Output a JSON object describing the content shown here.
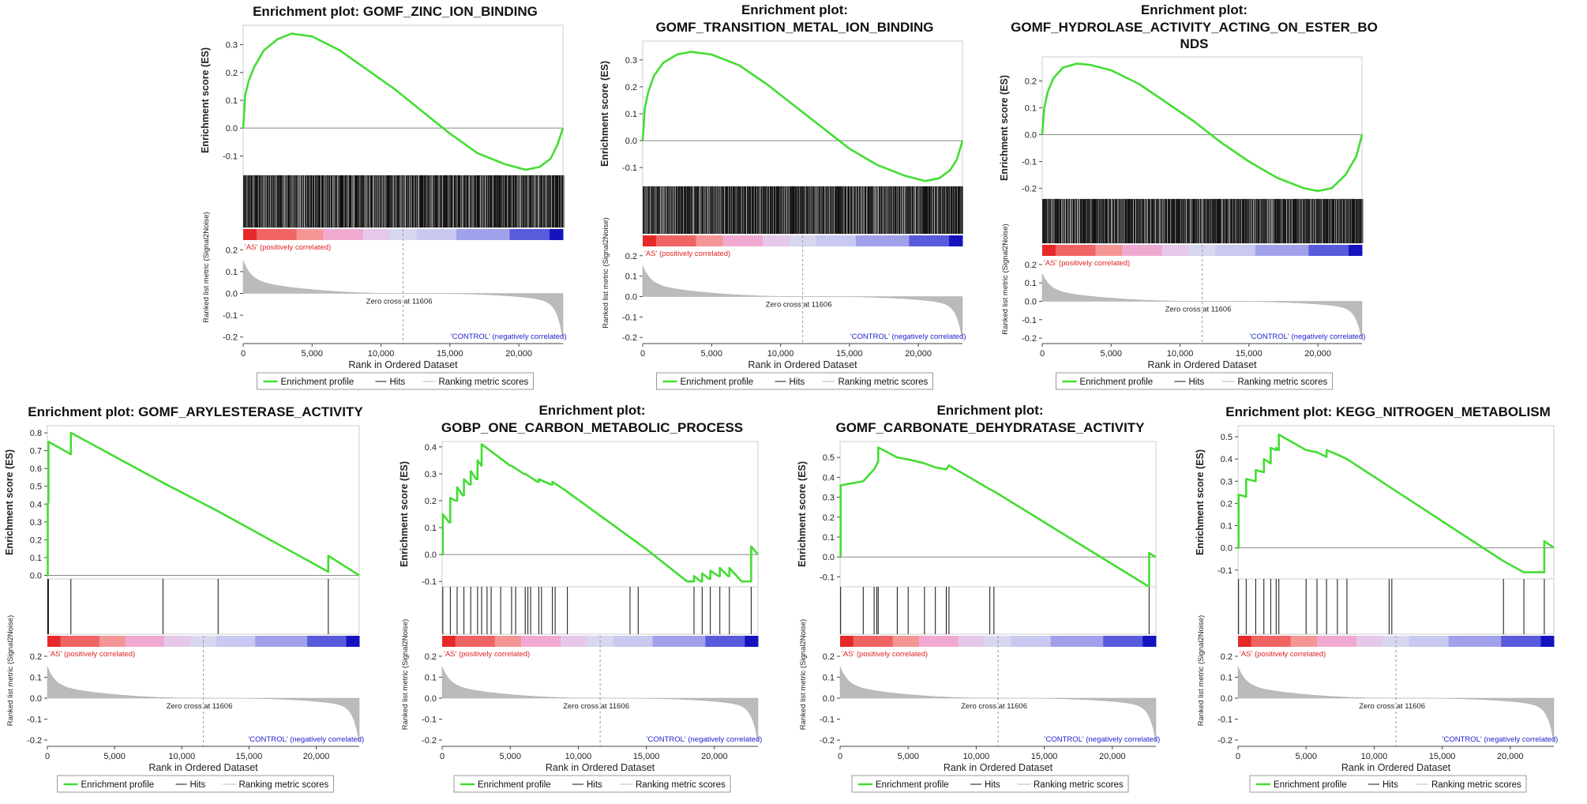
{
  "common": {
    "ylabel_es": "Enrichment score (ES)",
    "ylabel_metric": "Ranked list metric (Signal2Noise)",
    "xlabel": "Rank in Ordered Dataset",
    "x_tick_labels": [
      "0",
      "5,000",
      "10,000",
      "15,000",
      "20,000"
    ],
    "metric_tick_labels": [
      "0.2",
      "0.1",
      "0.0",
      "-0.1",
      "-0.2"
    ],
    "pos_label": "'AS' (positively correlated)",
    "neg_label": "'CONTROL' (negatively correlated)",
    "zero_cross": "Zero cross at 11606",
    "legend": {
      "profile": "Enrichment profile",
      "hits": "Hits",
      "ranking": "Ranking metric scores"
    },
    "colors": {
      "profile": "#44dd33",
      "hits": "#111111",
      "pos": "#dd2222",
      "neg": "#2222cc",
      "metric": "#bbbbbb"
    }
  },
  "chart_data": [
    {
      "type": "line",
      "title_lines": [
        "Enrichment plot: GOMF_ZINC_ION_BINDING"
      ],
      "ylim": [
        -0.17,
        0.37
      ],
      "y_ticks": [
        0.3,
        0.2,
        0.1,
        0.0,
        -0.1
      ],
      "y_tick_labels": [
        "0.3",
        "0.2",
        "0.1",
        "0.0",
        "-0.1"
      ],
      "x": [
        0,
        150,
        400,
        800,
        1500,
        2500,
        3500,
        5000,
        7000,
        9000,
        11000,
        13000,
        15000,
        17000,
        19000,
        20500,
        21500,
        22300,
        22800,
        23200
      ],
      "y": [
        0,
        0.12,
        0.17,
        0.22,
        0.28,
        0.32,
        0.34,
        0.33,
        0.28,
        0.21,
        0.14,
        0.06,
        -0.02,
        -0.09,
        -0.13,
        -0.15,
        -0.14,
        -0.11,
        -0.06,
        0.0
      ],
      "hits": "dense",
      "zero_cross": 11606,
      "n": 23200
    },
    {
      "type": "line",
      "title_lines": [
        "Enrichment plot:",
        "GOMF_TRANSITION_METAL_ION_BINDING"
      ],
      "ylim": [
        -0.17,
        0.37
      ],
      "y_ticks": [
        0.3,
        0.2,
        0.1,
        0.0,
        -0.1
      ],
      "y_tick_labels": [
        "0.3",
        "0.2",
        "0.1",
        "0.0",
        "-0.1"
      ],
      "x": [
        0,
        150,
        400,
        800,
        1500,
        2500,
        3500,
        5000,
        7000,
        9000,
        11000,
        13000,
        15000,
        17000,
        19000,
        20500,
        21500,
        22300,
        22800,
        23200
      ],
      "y": [
        0,
        0.12,
        0.18,
        0.24,
        0.29,
        0.32,
        0.33,
        0.32,
        0.28,
        0.21,
        0.13,
        0.05,
        -0.03,
        -0.09,
        -0.13,
        -0.15,
        -0.14,
        -0.11,
        -0.07,
        0.0
      ],
      "hits": "dense",
      "zero_cross": 11606,
      "n": 23200
    },
    {
      "type": "line",
      "title_lines": [
        "Enrichment plot:",
        "GOMF_HYDROLASE_ACTIVITY_ACTING_ON_ESTER_BO",
        "NDS"
      ],
      "ylim": [
        -0.24,
        0.29
      ],
      "y_ticks": [
        0.2,
        0.1,
        0.0,
        -0.1,
        -0.2
      ],
      "y_tick_labels": [
        "0.2",
        "0.1",
        "0.0",
        "-0.1",
        "-0.2"
      ],
      "x": [
        0,
        150,
        400,
        800,
        1500,
        2500,
        3500,
        5000,
        7000,
        9000,
        11000,
        13000,
        15000,
        17000,
        19000,
        20000,
        21000,
        22000,
        22800,
        23200
      ],
      "y": [
        0,
        0.1,
        0.16,
        0.21,
        0.25,
        0.265,
        0.26,
        0.24,
        0.19,
        0.12,
        0.05,
        -0.03,
        -0.1,
        -0.16,
        -0.2,
        -0.21,
        -0.2,
        -0.15,
        -0.08,
        0.0
      ],
      "hits": "dense",
      "zero_cross": 11606,
      "n": 23200
    },
    {
      "type": "line",
      "title_lines": [
        "Enrichment plot: GOMF_ARYLESTERASE_ACTIVITY"
      ],
      "ylim": [
        -0.02,
        0.84
      ],
      "y_ticks": [
        0.8,
        0.7,
        0.6,
        0.5,
        0.4,
        0.3,
        0.2,
        0.1,
        0.0
      ],
      "y_tick_labels": [
        "0.8",
        "0.7",
        "0.6",
        "0.5",
        "0.4",
        "0.3",
        "0.2",
        "0.1",
        "0.0"
      ],
      "x": [
        0,
        30,
        30,
        80,
        80,
        1750,
        1750,
        8600,
        8600,
        12700,
        12700,
        20900,
        20900,
        23200
      ],
      "y": [
        0,
        0.0,
        0.4,
        0.41,
        0.75,
        0.68,
        0.8,
        0.52,
        0.52,
        0.36,
        0.36,
        0.02,
        0.11,
        0.0
      ],
      "hit_positions": [
        30,
        80,
        1750,
        8600,
        12700,
        20900
      ],
      "zero_cross": 11606,
      "n": 23200
    },
    {
      "type": "line",
      "title_lines": [
        "Enrichment plot:",
        "GOBP_ONE_CARBON_METABOLIC_PROCESS"
      ],
      "ylim": [
        -0.12,
        0.42
      ],
      "y_ticks": [
        0.4,
        0.3,
        0.2,
        0.1,
        0.0,
        -0.1
      ],
      "y_tick_labels": [
        "0.4",
        "0.3",
        "0.2",
        "0.1",
        "0.0",
        "-0.1"
      ],
      "x": [
        0,
        50,
        50,
        500,
        600,
        600,
        1000,
        1100,
        1100,
        1500,
        1600,
        1600,
        2000,
        2100,
        2100,
        2500,
        2600,
        2600,
        2900,
        2900,
        5000,
        5100,
        5100,
        6000,
        6100,
        6100,
        7000,
        7100,
        7100,
        8000,
        8100,
        8100,
        9000,
        15000,
        17000,
        18000,
        18500,
        18500,
        19000,
        19100,
        19100,
        19600,
        19700,
        19700,
        20300,
        20400,
        20400,
        21000,
        21100,
        21100,
        22000,
        22700,
        22700,
        23200
      ],
      "y": [
        0,
        0.0,
        0.15,
        0.12,
        0.12,
        0.21,
        0.2,
        0.2,
        0.25,
        0.22,
        0.22,
        0.28,
        0.26,
        0.26,
        0.31,
        0.28,
        0.28,
        0.35,
        0.33,
        0.41,
        0.33,
        0.33,
        0.33,
        0.3,
        0.3,
        0.3,
        0.27,
        0.27,
        0.28,
        0.26,
        0.26,
        0.27,
        0.24,
        0.02,
        -0.06,
        -0.1,
        -0.1,
        -0.08,
        -0.1,
        -0.1,
        -0.07,
        -0.09,
        -0.09,
        -0.06,
        -0.08,
        -0.08,
        -0.05,
        -0.08,
        -0.08,
        -0.05,
        -0.1,
        -0.1,
        0.03,
        0.0
      ],
      "hit_positions": [
        50,
        600,
        1100,
        1600,
        2100,
        2600,
        2900,
        3300,
        3600,
        4300,
        5100,
        5400,
        6100,
        6300,
        6500,
        7100,
        7300,
        8100,
        8300,
        9200,
        13800,
        14400,
        18500,
        19100,
        19700,
        20400,
        21100,
        22700
      ],
      "zero_cross": 11606,
      "n": 23200
    },
    {
      "type": "line",
      "title_lines": [
        "Enrichment plot:",
        "GOMF_CARBONATE_DEHYDRATASE_ACTIVITY"
      ],
      "ylim": [
        -0.15,
        0.58
      ],
      "y_ticks": [
        0.5,
        0.4,
        0.3,
        0.2,
        0.1,
        0.0,
        -0.1
      ],
      "y_tick_labels": [
        "0.5",
        "0.4",
        "0.3",
        "0.2",
        "0.1",
        "0.0",
        "-0.1"
      ],
      "x": [
        0,
        40,
        40,
        1700,
        1700,
        2500,
        2500,
        2800,
        2800,
        4200,
        4200,
        5000,
        5000,
        6200,
        6200,
        7000,
        7000,
        7800,
        7800,
        8000,
        8000,
        11000,
        11000,
        11300,
        11300,
        22700,
        22700,
        23200
      ],
      "y": [
        0,
        0.0,
        0.36,
        0.38,
        0.38,
        0.44,
        0.44,
        0.48,
        0.55,
        0.5,
        0.5,
        0.49,
        0.49,
        0.47,
        0.47,
        0.45,
        0.45,
        0.44,
        0.44,
        0.46,
        0.46,
        0.34,
        0.34,
        0.33,
        0.33,
        -0.15,
        0.02,
        0.0
      ],
      "hit_positions": [
        40,
        1700,
        2500,
        2700,
        2800,
        4200,
        5000,
        6200,
        7000,
        7800,
        8000,
        11000,
        11300,
        22700
      ],
      "zero_cross": 11606,
      "n": 23200
    },
    {
      "type": "line",
      "title_lines": [
        "Enrichment plot: KEGG_NITROGEN_METABOLISM"
      ],
      "ylim": [
        -0.14,
        0.55
      ],
      "y_ticks": [
        0.5,
        0.4,
        0.3,
        0.2,
        0.1,
        0.0,
        -0.1
      ],
      "y_tick_labels": [
        "0.5",
        "0.4",
        "0.3",
        "0.2",
        "0.1",
        "0.0",
        "-0.1"
      ],
      "x": [
        0,
        40,
        40,
        600,
        600,
        1300,
        1300,
        1900,
        1900,
        2400,
        2400,
        2800,
        2800,
        3000,
        3000,
        5000,
        5000,
        5800,
        5800,
        6500,
        6500,
        7300,
        7300,
        8000,
        8000,
        19000,
        19500,
        19500,
        21000,
        21000,
        22500,
        22500,
        23200
      ],
      "y": [
        0,
        0.0,
        0.24,
        0.23,
        0.31,
        0.3,
        0.35,
        0.34,
        0.4,
        0.38,
        0.45,
        0.44,
        0.45,
        0.44,
        0.51,
        0.44,
        0.44,
        0.43,
        0.43,
        0.41,
        0.44,
        0.42,
        0.42,
        0.4,
        0.4,
        -0.04,
        -0.06,
        -0.06,
        -0.11,
        -0.11,
        -0.11,
        0.03,
        0.0
      ],
      "hit_positions": [
        40,
        600,
        1300,
        1900,
        2400,
        2800,
        3000,
        5000,
        5800,
        6500,
        7300,
        8000,
        11100,
        11300,
        19500,
        21000,
        22500
      ],
      "zero_cross": 11606,
      "n": 23200
    }
  ]
}
